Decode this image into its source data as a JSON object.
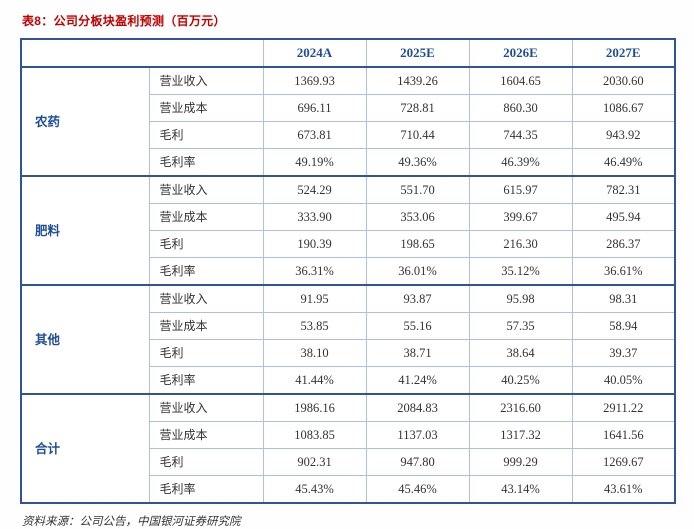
{
  "page": {
    "title": "表8：公司分板块盈利预测（百万元）",
    "source_note": "资料来源：公司公告，中国银河证券研究院"
  },
  "colors": {
    "title_red": "#c00000",
    "header_blue": "#1f4e96",
    "border_strong": "#2f5597",
    "border_light": "#adc0dd"
  },
  "table": {
    "year_headers": [
      "2024A",
      "2025E",
      "2026E",
      "2027E"
    ],
    "groups": [
      {
        "name": "农药",
        "rows": [
          {
            "label": "营业收入",
            "v": [
              "1369.93",
              "1439.26",
              "1604.65",
              "2030.60"
            ]
          },
          {
            "label": "营业成本",
            "v": [
              "696.11",
              "728.81",
              "860.30",
              "1086.67"
            ]
          },
          {
            "label": "毛利",
            "v": [
              "673.81",
              "710.44",
              "744.35",
              "943.92"
            ]
          },
          {
            "label": "毛利率",
            "v": [
              "49.19%",
              "49.36%",
              "46.39%",
              "46.49%"
            ]
          }
        ]
      },
      {
        "name": "肥料",
        "rows": [
          {
            "label": "营业收入",
            "v": [
              "524.29",
              "551.70",
              "615.97",
              "782.31"
            ]
          },
          {
            "label": "营业成本",
            "v": [
              "333.90",
              "353.06",
              "399.67",
              "495.94"
            ]
          },
          {
            "label": "毛利",
            "v": [
              "190.39",
              "198.65",
              "216.30",
              "286.37"
            ]
          },
          {
            "label": "毛利率",
            "v": [
              "36.31%",
              "36.01%",
              "35.12%",
              "36.61%"
            ]
          }
        ]
      },
      {
        "name": "其他",
        "rows": [
          {
            "label": "营业收入",
            "v": [
              "91.95",
              "93.87",
              "95.98",
              "98.31"
            ]
          },
          {
            "label": "营业成本",
            "v": [
              "53.85",
              "55.16",
              "57.35",
              "58.94"
            ]
          },
          {
            "label": "毛利",
            "v": [
              "38.10",
              "38.71",
              "38.64",
              "39.37"
            ]
          },
          {
            "label": "毛利率",
            "v": [
              "41.44%",
              "41.24%",
              "40.25%",
              "40.05%"
            ]
          }
        ]
      },
      {
        "name": "合计",
        "rows": [
          {
            "label": "营业收入",
            "v": [
              "1986.16",
              "2084.83",
              "2316.60",
              "2911.22"
            ]
          },
          {
            "label": "营业成本",
            "v": [
              "1083.85",
              "1137.03",
              "1317.32",
              "1641.56"
            ]
          },
          {
            "label": "毛利",
            "v": [
              "902.31",
              "947.80",
              "999.29",
              "1269.67"
            ]
          },
          {
            "label": "毛利率",
            "v": [
              "45.43%",
              "45.46%",
              "43.14%",
              "43.61%"
            ]
          }
        ]
      }
    ]
  }
}
